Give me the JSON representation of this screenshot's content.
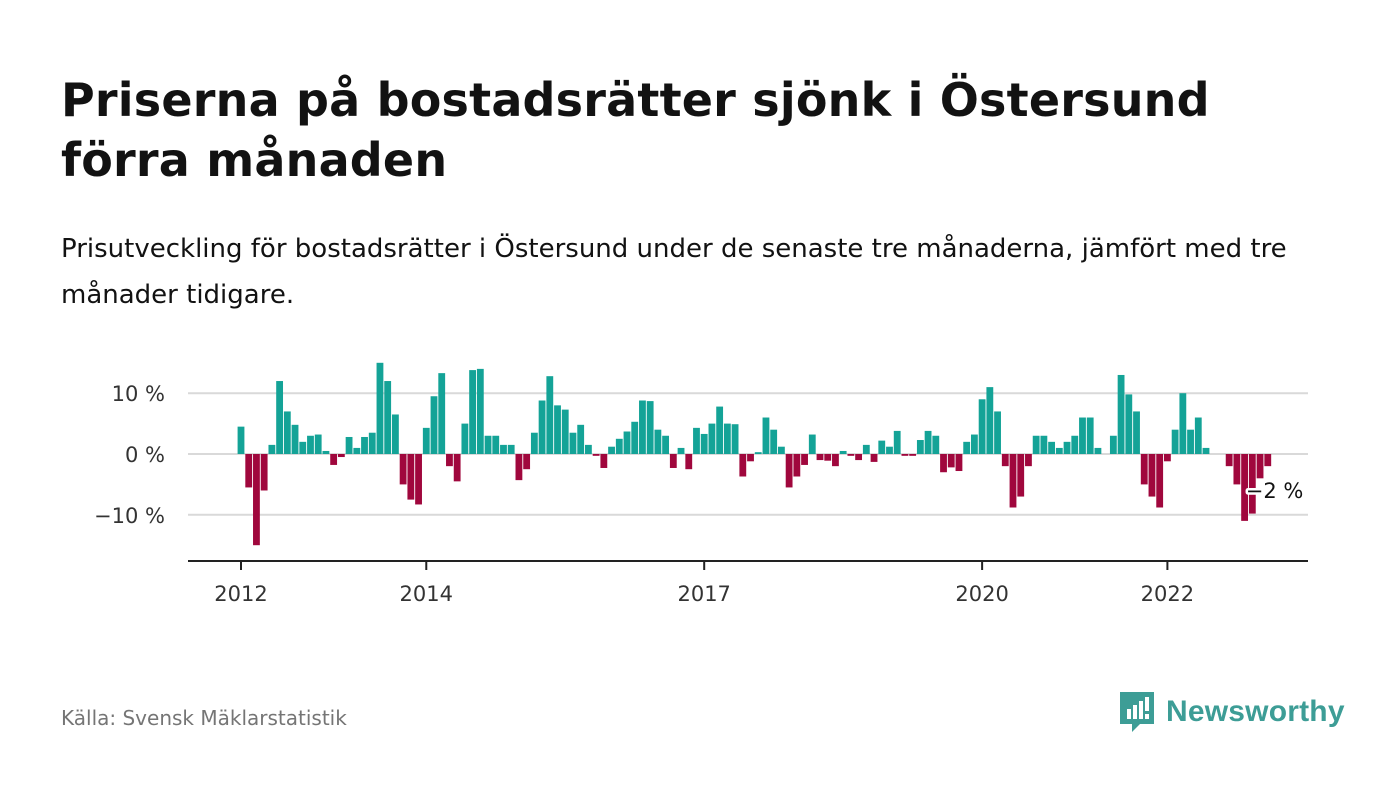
{
  "title": "Priserna på bostadsrätter sjönk i Östersund förra månaden",
  "subtitle": "Prisutveckling för bostadsrätter i Östersund under de senaste tre månaderna, jämfört med tre månader tidigare.",
  "source": "Källa: Svensk Mäklarstatistik",
  "brand": {
    "name": "Newsworthy",
    "icon": "newsworthy-logo-icon",
    "color": "#3d9d96"
  },
  "colors": {
    "positive": "#14a397",
    "negative": "#a0073d",
    "grid": "#d9d9d9",
    "axis": "#222222"
  },
  "chart_data": {
    "type": "bar",
    "title": "Priserna på bostadsrätter sjönk i Östersund förra månaden",
    "subtitle": "Prisutveckling för bostadsrätter i Östersund under de senaste tre månaderna, jämfört med tre månader tidigare.",
    "xlabel": "",
    "ylabel": "",
    "x_start": "2012-01",
    "x_end": "2023-02",
    "ylim": [
      -17,
      15.5
    ],
    "y_ticks": [
      {
        "value": 10,
        "label": "10 %"
      },
      {
        "value": 0,
        "label": "0 %"
      },
      {
        "value": -10,
        "label": "−10 %"
      }
    ],
    "x_ticks": [
      {
        "date": "2012-01",
        "label": "2012"
      },
      {
        "date": "2014-01",
        "label": "2014"
      },
      {
        "date": "2017-01",
        "label": "2017"
      },
      {
        "date": "2020-01",
        "label": "2020"
      },
      {
        "date": "2022-01",
        "label": "2022"
      }
    ],
    "grid": true,
    "annotation": {
      "date": "2023-02",
      "label": "−2 %"
    },
    "months": [
      "2012-01",
      "2012-02",
      "2012-03",
      "2012-04",
      "2012-05",
      "2012-06",
      "2012-07",
      "2012-08",
      "2012-09",
      "2012-10",
      "2012-11",
      "2012-12",
      "2013-01",
      "2013-02",
      "2013-03",
      "2013-04",
      "2013-05",
      "2013-06",
      "2013-07",
      "2013-08",
      "2013-09",
      "2013-10",
      "2013-11",
      "2013-12",
      "2014-01",
      "2014-02",
      "2014-03",
      "2014-04",
      "2014-05",
      "2014-06",
      "2014-07",
      "2014-08",
      "2014-09",
      "2014-10",
      "2014-11",
      "2014-12",
      "2015-01",
      "2015-02",
      "2015-03",
      "2015-04",
      "2015-05",
      "2015-06",
      "2015-07",
      "2015-08",
      "2015-09",
      "2015-10",
      "2015-11",
      "2015-12",
      "2016-01",
      "2016-02",
      "2016-03",
      "2016-04",
      "2016-05",
      "2016-06",
      "2016-07",
      "2016-08",
      "2016-09",
      "2016-10",
      "2016-11",
      "2016-12",
      "2017-01",
      "2017-02",
      "2017-03",
      "2017-04",
      "2017-05",
      "2017-06",
      "2017-07",
      "2017-08",
      "2017-09",
      "2017-10",
      "2017-11",
      "2017-12",
      "2018-01",
      "2018-02",
      "2018-03",
      "2018-04",
      "2018-05",
      "2018-06",
      "2018-07",
      "2018-08",
      "2018-09",
      "2018-10",
      "2018-11",
      "2018-12",
      "2019-01",
      "2019-02",
      "2019-03",
      "2019-04",
      "2019-05",
      "2019-06",
      "2019-07",
      "2019-08",
      "2019-09",
      "2019-10",
      "2019-11",
      "2019-12",
      "2020-01",
      "2020-02",
      "2020-03",
      "2020-04",
      "2020-05",
      "2020-06",
      "2020-07",
      "2020-08",
      "2020-09",
      "2020-10",
      "2020-11",
      "2020-12",
      "2021-01",
      "2021-02",
      "2021-03",
      "2021-04",
      "2021-05",
      "2021-06",
      "2021-07",
      "2021-08",
      "2021-09",
      "2021-10",
      "2021-11",
      "2021-12",
      "2022-01",
      "2022-02",
      "2022-03",
      "2022-04",
      "2022-05",
      "2022-06",
      "2022-07",
      "2022-08",
      "2022-09",
      "2022-10",
      "2022-11",
      "2022-12",
      "2023-01",
      "2023-02"
    ],
    "values": [
      4.5,
      -5.5,
      -15.0,
      -6.0,
      1.5,
      12.0,
      7.0,
      4.8,
      2.0,
      3.0,
      3.2,
      0.5,
      -1.8,
      -0.5,
      2.8,
      1.0,
      2.8,
      3.5,
      15.0,
      12.0,
      6.5,
      -5.0,
      -7.5,
      -8.3,
      4.3,
      9.5,
      13.3,
      -2.0,
      -4.5,
      5.0,
      13.8,
      14.0,
      3.0,
      3.0,
      1.5,
      1.5,
      -4.3,
      -2.5,
      3.5,
      8.8,
      12.8,
      8.0,
      7.3,
      3.5,
      4.8,
      1.5,
      -0.3,
      -2.3,
      1.2,
      2.5,
      3.7,
      5.3,
      8.8,
      8.7,
      4.0,
      3.0,
      -2.3,
      1.0,
      -2.5,
      4.3,
      3.3,
      5.0,
      7.8,
      5.0,
      4.9,
      -3.7,
      -1.2,
      0.3,
      6.0,
      4.0,
      1.2,
      -5.5,
      -3.7,
      -1.8,
      3.2,
      -1.0,
      -1.1,
      -2.0,
      0.5,
      -0.3,
      -1.0,
      1.5,
      -1.3,
      2.2,
      1.2,
      3.8,
      -0.3,
      -0.3,
      2.3,
      3.8,
      3.0,
      -3.0,
      -2.2,
      -2.8,
      2.0,
      3.2,
      9.0,
      11.0,
      7.0,
      -2.0,
      -8.8,
      -7.0,
      -2.0,
      3.0,
      3.0,
      2.0,
      1.0,
      2.0,
      3.0,
      6.0,
      6.0,
      1.0,
      0.0,
      3.0,
      13.0,
      9.8,
      7.0,
      -5.0,
      -7.0,
      -8.8,
      -1.2,
      4.0,
      10.0,
      4.0,
      6.0,
      1.0,
      0.0,
      0.0,
      -2.0,
      -5.0,
      -11.0,
      -9.8,
      -4.0,
      -2.0
    ]
  }
}
